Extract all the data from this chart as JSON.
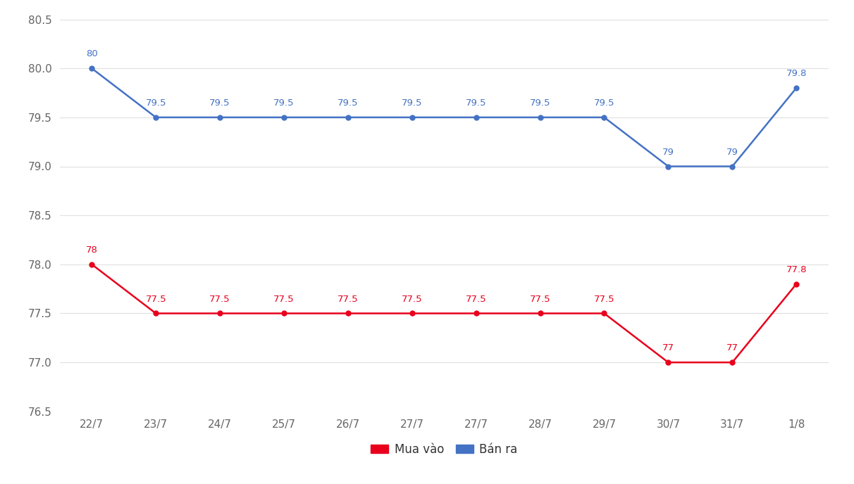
{
  "x_labels": [
    "22/7",
    "23/7",
    "24/7",
    "25/7",
    "26/7",
    "27/7",
    "27/7",
    "28/7",
    "29/7",
    "30/7",
    "31/7",
    "1/8"
  ],
  "ban_ra": [
    80.0,
    79.5,
    79.5,
    79.5,
    79.5,
    79.5,
    79.5,
    79.5,
    79.5,
    79.0,
    79.0,
    79.8
  ],
  "mua_vao": [
    78.0,
    77.5,
    77.5,
    77.5,
    77.5,
    77.5,
    77.5,
    77.5,
    77.5,
    77.0,
    77.0,
    77.8
  ],
  "ban_ra_labels": [
    "80",
    "79.5",
    "79.5",
    "79.5",
    "79.5",
    "79.5",
    "79.5",
    "79.5",
    "79.5",
    "79",
    "79",
    "79.8"
  ],
  "mua_vao_labels": [
    "78",
    "77.5",
    "77.5",
    "77.5",
    "77.5",
    "77.5",
    "77.5",
    "77.5",
    "77.5",
    "77",
    "77",
    "77.8"
  ],
  "ban_ra_color": "#4472C4",
  "mua_vao_color": "#E8001C",
  "ylim": [
    76.5,
    80.5
  ],
  "yticks": [
    76.5,
    77.0,
    77.5,
    78.0,
    78.5,
    79.0,
    79.5,
    80.0,
    80.5
  ],
  "ytick_labels": [
    "76.5",
    "77.0",
    "77.5",
    "78.0",
    "78.5",
    "79.0",
    "79.5",
    "80.0",
    "80.5"
  ],
  "legend_mua_vao": "Mua vào",
  "legend_ban_ra": "Bán ra",
  "background_color": "#ffffff",
  "grid_color": "#e0e0e0",
  "label_fontsize": 9.5,
  "tick_fontsize": 11,
  "legend_fontsize": 12,
  "dot_size": 5,
  "line_width": 1.8
}
